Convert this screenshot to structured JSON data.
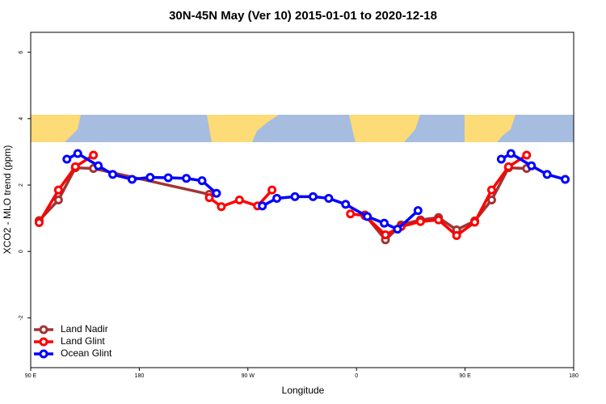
{
  "chart_data": {
    "type": "line",
    "title": "30N-45N May (Ver 10)   2015-01-01 to 2020-12-18",
    "x_label": "Longitude",
    "y_label": "XCO2 - MLO trend (ppm)",
    "xlim": [
      90,
      540
    ],
    "xticks": [
      {
        "value": 90,
        "label": "90 E"
      },
      {
        "value": 180,
        "label": "180"
      },
      {
        "value": 270,
        "label": "90 W"
      },
      {
        "value": 360,
        "label": "0"
      },
      {
        "value": 450,
        "label": "90 E"
      },
      {
        "value": 540,
        "label": "180"
      }
    ],
    "ylim": [
      -3.5,
      6.6
    ],
    "yticks": [
      -2,
      0,
      2,
      4,
      6
    ],
    "legend": "bottom-left",
    "series": [
      {
        "name": "Land Nadir",
        "color": "#a33333",
        "x": [
          97,
          113,
          127,
          142,
          238,
          null,
          367,
          384,
          397,
          413,
          428,
          443,
          458,
          472,
          486,
          501
        ],
        "values": [
          0.93,
          1.55,
          2.52,
          2.5,
          1.72,
          null,
          1.1,
          0.35,
          0.8,
          0.95,
          1.02,
          0.65,
          0.92,
          1.55,
          2.52,
          2.5
        ]
      },
      {
        "name": "Land Glint",
        "color": "#ff0000",
        "x": [
          97,
          113,
          127,
          142,
          null,
          238,
          248,
          263,
          278,
          290,
          null,
          355,
          367,
          384,
          397,
          413,
          428,
          443,
          458,
          472,
          486,
          501
        ],
        "values": [
          0.87,
          1.85,
          2.55,
          2.9,
          null,
          1.62,
          1.35,
          1.55,
          1.37,
          1.85,
          null,
          1.13,
          1.08,
          0.5,
          0.75,
          0.9,
          0.95,
          0.48,
          0.88,
          1.85,
          2.55,
          2.9
        ]
      },
      {
        "name": "Ocean Glint",
        "color": "#0000ff",
        "x": [
          120,
          129,
          146,
          158,
          174,
          189,
          204,
          219,
          232,
          244,
          null,
          282,
          294,
          309,
          324,
          337,
          351,
          369,
          383,
          394,
          411,
          null,
          480,
          488,
          505,
          518,
          533
        ],
        "values": [
          2.78,
          2.95,
          2.58,
          2.32,
          2.17,
          2.23,
          2.22,
          2.2,
          2.13,
          1.75,
          null,
          1.37,
          1.6,
          1.65,
          1.65,
          1.6,
          1.42,
          1.05,
          0.85,
          0.67,
          1.23,
          null,
          2.78,
          2.95,
          2.58,
          2.32,
          2.17
        ]
      }
    ]
  }
}
